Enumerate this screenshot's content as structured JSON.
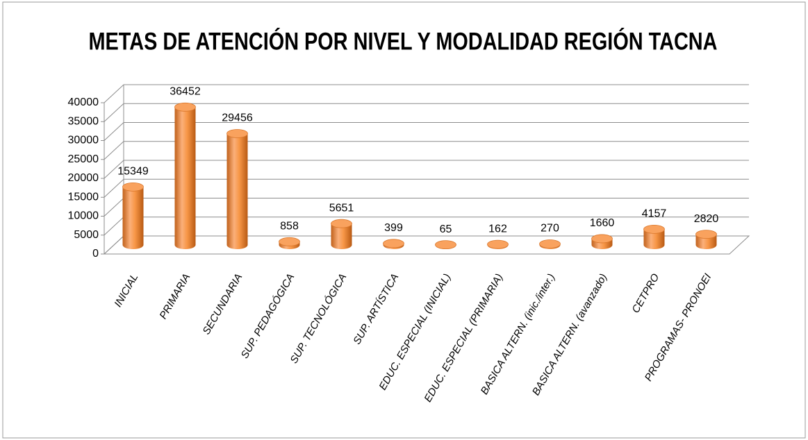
{
  "chart_data": {
    "type": "bar",
    "title": "METAS DE ATENCIÓN POR  NIVEL Y MODALIDAD REGIÓN TACNA",
    "categories": [
      "INICIAL",
      "PRIMARIA",
      "SECUNDARIA",
      "SUP. PEDAGÓGICA",
      "SUP. TECNOLÓGICA",
      "SUP. ARTÍSTICA",
      "EDUC. ESPECIAL (INICIAL)",
      "EDUC. ESPECIAL (PRIMARIA)",
      "BASICA ALTERN. (inic./inter.)",
      "BASICA ALTERN. (avanzado)",
      "CETPRO",
      "PROGRAMAS- PRONOEI"
    ],
    "values": [
      15349,
      36452,
      29456,
      858,
      5651,
      399,
      65,
      162,
      270,
      1660,
      4157,
      2820
    ],
    "color": "#f79646",
    "ylim": [
      0,
      40000
    ],
    "yticks": [
      0,
      5000,
      10000,
      15000,
      20000,
      25000,
      30000,
      35000,
      40000
    ],
    "grid": true
  }
}
